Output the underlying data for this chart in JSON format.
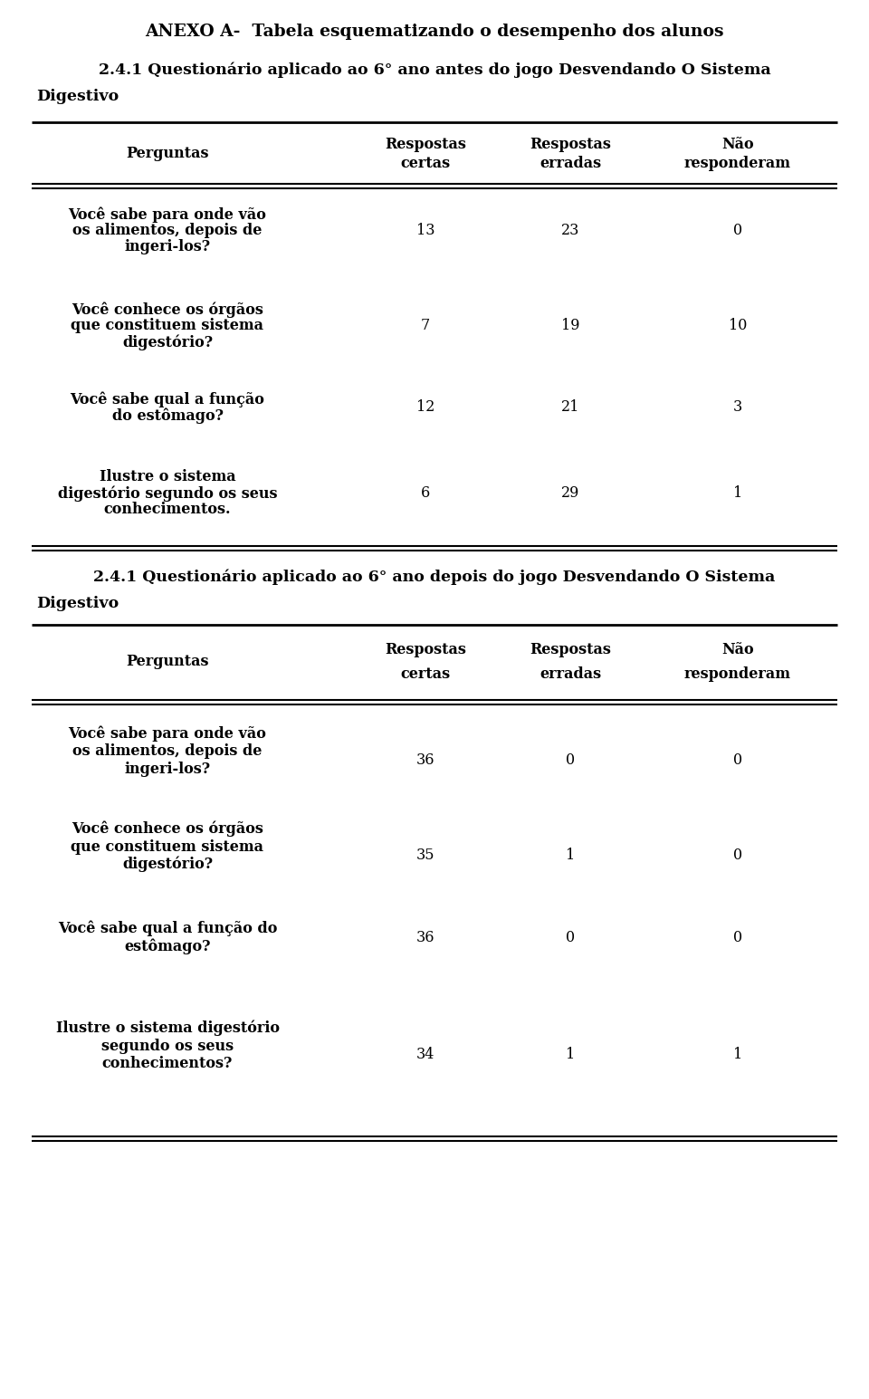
{
  "main_title": "ANEXO A-  Tabela esquematizando o desempenho dos alunos",
  "section1_line1": "2.4.1 Questionário aplicado ao 6° ano antes do jogo Desvendando O Sistema",
  "section1_line2": "Digestivo",
  "section2_line1": "2.4.1 Questionário aplicado ao 6° ano depois do jogo Desvendando O Sistema",
  "section2_line2": "Digestivo",
  "col_headers": [
    "Perguntas",
    "Respostas\ncertas",
    "Respostas\nerradas",
    "Não\nresponderam"
  ],
  "table1_rows": [
    {
      "question_lines": [
        "Você sabe para onde vão",
        "os alimentos, depois de",
        "ingeri-los?"
      ],
      "certas": "13",
      "erradas": "23",
      "nao": "0"
    },
    {
      "question_lines": [
        "Você conhece os órgãos",
        "que constituem sistema",
        "digestório?"
      ],
      "certas": "7",
      "erradas": "19",
      "nao": "10"
    },
    {
      "question_lines": [
        "Você sabe qual a função",
        "do estômago?"
      ],
      "certas": "12",
      "erradas": "21",
      "nao": "3"
    },
    {
      "question_lines": [
        "Ilustre o sistema",
        "digestório segundo os seus",
        "conhecimentos."
      ],
      "certas": "6",
      "erradas": "29",
      "nao": "1"
    }
  ],
  "table2_rows": [
    {
      "question_lines": [
        "Você sabe para onde vão",
        "os alimentos, depois de",
        "ingeri-los?"
      ],
      "certas": "36",
      "erradas": "0",
      "nao": "0"
    },
    {
      "question_lines": [
        "Você conhece os órgãos",
        "que constituem sistema",
        "digestório?"
      ],
      "certas": "35",
      "erradas": "1",
      "nao": "0"
    },
    {
      "question_lines": [
        "Você sabe qual a função do",
        "estômago?"
      ],
      "certas": "36",
      "erradas": "0",
      "nao": "0"
    },
    {
      "question_lines": [
        "Ilustre o sistema digestório",
        "segundo os seus",
        "conhecimentos?"
      ],
      "certas": "34",
      "erradas": "1",
      "nao": "1"
    }
  ],
  "bg_color": "#ffffff",
  "text_color": "#000000",
  "font_size_main_title": 13.5,
  "font_size_section": 12.5,
  "font_size_header": 11.5,
  "font_size_body": 11.5
}
